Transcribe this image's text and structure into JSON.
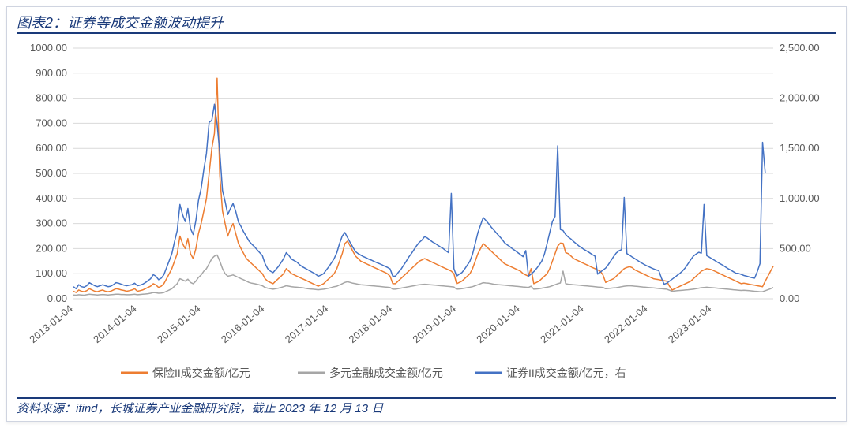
{
  "title": "图表2：证券等成交金额波动提升",
  "source": "资料来源：ifind，长城证券产业金融研究院，截止 2023 年 12 月 13 日",
  "chart": {
    "type": "line",
    "background_color": "#ffffff",
    "grid_color": "#d9d9d9",
    "text_color": "#595959",
    "title_fontsize": 18,
    "label_fontsize": 13,
    "left_axis": {
      "ymin": 0,
      "ymax": 1000,
      "step": 100,
      "decimals": 2
    },
    "right_axis": {
      "ymin": 0,
      "ymax": 2500,
      "step": 500,
      "decimals": 2
    },
    "x_labels": [
      "2013-01-04",
      "2014-01-04",
      "2015-01-04",
      "2016-01-04",
      "2017-01-04",
      "2018-01-04",
      "2019-01-04",
      "2020-01-04",
      "2021-01-04",
      "2022-01-04",
      "2023-01-04"
    ],
    "n_points": 264,
    "x_per_year": 24,
    "series": [
      {
        "name": "保险II成交金额/亿元",
        "color": "#ed7d31",
        "axis": "left",
        "line_width": 1.5,
        "values": [
          30,
          25,
          35,
          30,
          28,
          32,
          40,
          35,
          30,
          28,
          32,
          35,
          30,
          28,
          30,
          35,
          40,
          38,
          35,
          33,
          30,
          32,
          35,
          40,
          30,
          32,
          35,
          40,
          45,
          50,
          60,
          55,
          45,
          50,
          60,
          80,
          100,
          120,
          150,
          180,
          250,
          220,
          200,
          240,
          180,
          160,
          200,
          260,
          300,
          350,
          400,
          500,
          600,
          660,
          880,
          490,
          350,
          300,
          250,
          280,
          300,
          260,
          220,
          200,
          180,
          160,
          150,
          140,
          130,
          120,
          110,
          100,
          80,
          70,
          65,
          60,
          70,
          80,
          90,
          100,
          120,
          110,
          100,
          95,
          90,
          85,
          80,
          75,
          70,
          65,
          60,
          55,
          50,
          55,
          60,
          70,
          80,
          90,
          100,
          120,
          150,
          180,
          220,
          230,
          210,
          190,
          170,
          160,
          150,
          145,
          140,
          135,
          130,
          125,
          120,
          115,
          110,
          105,
          100,
          90,
          60,
          60,
          70,
          80,
          90,
          100,
          110,
          120,
          130,
          140,
          150,
          155,
          160,
          155,
          150,
          145,
          140,
          135,
          130,
          125,
          120,
          115,
          110,
          100,
          60,
          65,
          70,
          80,
          90,
          100,
          120,
          150,
          180,
          200,
          220,
          210,
          200,
          190,
          180,
          170,
          160,
          150,
          140,
          135,
          130,
          125,
          120,
          115,
          110,
          100,
          95,
          90,
          120,
          60,
          65,
          70,
          80,
          90,
          100,
          120,
          150,
          180,
          210,
          222,
          221,
          184,
          180,
          170,
          160,
          155,
          150,
          145,
          140,
          135,
          130,
          125,
          120,
          115,
          110,
          95,
          65,
          70,
          75,
          80,
          90,
          100,
          110,
          120,
          125,
          128,
          124,
          115,
          110,
          105,
          100,
          95,
          90,
          85,
          80,
          78,
          76,
          74,
          72,
          70,
          50,
          35,
          40,
          45,
          50,
          55,
          60,
          65,
          70,
          80,
          90,
          100,
          110,
          115,
          120,
          118,
          115,
          110,
          105,
          100,
          95,
          90,
          85,
          80,
          75,
          70,
          65,
          60,
          62,
          60,
          58,
          56,
          54,
          52,
          50,
          48,
          70,
          90,
          110,
          130
        ]
      },
      {
        "name": "多元金融成交金额/亿元",
        "color": "#a6a6a6",
        "axis": "left",
        "line_width": 1.5,
        "values": [
          15,
          14,
          16,
          15,
          14,
          16,
          18,
          17,
          16,
          15,
          16,
          17,
          16,
          15,
          16,
          17,
          18,
          18,
          17,
          17,
          16,
          16,
          17,
          18,
          16,
          17,
          18,
          19,
          20,
          22,
          25,
          24,
          22,
          23,
          25,
          30,
          35,
          40,
          50,
          60,
          80,
          75,
          70,
          78,
          65,
          60,
          70,
          85,
          95,
          110,
          120,
          140,
          160,
          170,
          175,
          150,
          120,
          100,
          90,
          92,
          95,
          90,
          85,
          80,
          75,
          70,
          65,
          62,
          60,
          58,
          55,
          52,
          45,
          42,
          40,
          38,
          40,
          42,
          45,
          48,
          52,
          50,
          48,
          47,
          46,
          45,
          44,
          42,
          40,
          39,
          38,
          37,
          36,
          37,
          38,
          40,
          42,
          45,
          48,
          50,
          55,
          60,
          65,
          68,
          65,
          62,
          60,
          58,
          56,
          55,
          54,
          53,
          52,
          51,
          50,
          49,
          48,
          47,
          46,
          45,
          38,
          38,
          40,
          42,
          44,
          46,
          48,
          50,
          52,
          54,
          56,
          57,
          58,
          57,
          56,
          55,
          54,
          53,
          52,
          51,
          50,
          49,
          48,
          47,
          38,
          39,
          40,
          42,
          44,
          46,
          48,
          52,
          56,
          60,
          64,
          63,
          62,
          60,
          58,
          57,
          56,
          55,
          54,
          53,
          52,
          51,
          50,
          49,
          48,
          47,
          46,
          45,
          50,
          38,
          39,
          40,
          42,
          44,
          46,
          48,
          52,
          56,
          60,
          63,
          110,
          60,
          58,
          57,
          56,
          55,
          54,
          53,
          52,
          51,
          50,
          49,
          48,
          47,
          46,
          45,
          40,
          41,
          42,
          43,
          44,
          46,
          48,
          50,
          51,
          52,
          51,
          50,
          49,
          48,
          47,
          46,
          45,
          44,
          43,
          42,
          41,
          40,
          39,
          38,
          34,
          30,
          31,
          32,
          33,
          34,
          35,
          36,
          37,
          38,
          40,
          42,
          44,
          45,
          46,
          45,
          44,
          43,
          42,
          41,
          40,
          39,
          38,
          37,
          36,
          35,
          34,
          33,
          34,
          33,
          32,
          31,
          30,
          29,
          28,
          28,
          32,
          36,
          40,
          45
        ]
      },
      {
        "name": "证券II成交金额/亿元，右",
        "color": "#4472c4",
        "axis": "right",
        "line_width": 1.5,
        "values": [
          120,
          100,
          140,
          120,
          115,
          130,
          160,
          145,
          130,
          120,
          130,
          140,
          130,
          120,
          125,
          140,
          160,
          155,
          145,
          135,
          130,
          135,
          140,
          155,
          130,
          135,
          145,
          160,
          180,
          200,
          240,
          225,
          190,
          205,
          240,
          310,
          380,
          450,
          570,
          680,
          940,
          840,
          770,
          900,
          700,
          640,
          780,
          980,
          1100,
          1290,
          1450,
          1760,
          1780,
          1940,
          1740,
          1460,
          1080,
          970,
          840,
          900,
          950,
          870,
          765,
          720,
          665,
          620,
          575,
          545,
          520,
          490,
          460,
          430,
          350,
          300,
          275,
          260,
          290,
          320,
          360,
          400,
          460,
          430,
          395,
          380,
          365,
          340,
          320,
          305,
          290,
          275,
          260,
          245,
          225,
          235,
          250,
          285,
          320,
          360,
          400,
          460,
          550,
          625,
          660,
          610,
          560,
          515,
          470,
          450,
          435,
          420,
          408,
          395,
          385,
          372,
          360,
          350,
          338,
          325,
          313,
          298,
          225,
          225,
          260,
          290,
          330,
          370,
          415,
          450,
          490,
          530,
          563,
          585,
          620,
          605,
          585,
          565,
          550,
          532,
          515,
          500,
          478,
          460,
          1050,
          300,
          225,
          245,
          260,
          295,
          335,
          375,
          445,
          550,
          660,
          735,
          810,
          780,
          750,
          715,
          685,
          655,
          625,
          595,
          560,
          538,
          520,
          498,
          480,
          460,
          440,
          420,
          480,
          225,
          245,
          270,
          300,
          335,
          375,
          445,
          550,
          660,
          770,
          820,
          1525,
          690,
          680,
          640,
          615,
          595,
          570,
          548,
          525,
          508,
          490,
          475,
          458,
          440,
          425,
          245,
          265,
          285,
          305,
          340,
          380,
          420,
          455,
          478,
          490,
          1010,
          450,
          435,
          415,
          400,
          382,
          365,
          350,
          335,
          322,
          310,
          298,
          288,
          280,
          205,
          145,
          155,
          175,
          195,
          215,
          235,
          255,
          280,
          310,
          350,
          390,
          425,
          445,
          463,
          455,
          940,
          430,
          415,
          398,
          382,
          365,
          350,
          335,
          318,
          300,
          286,
          270,
          255,
          252,
          242,
          232,
          225,
          217,
          210,
          205,
          270,
          350,
          1560,
          1250
        ]
      }
    ],
    "legend": {
      "position": "bottom",
      "items": [
        {
          "label": "保险II成交金额/亿元",
          "color": "#ed7d31"
        },
        {
          "label": "多元金融成交金额/亿元",
          "color": "#a6a6a6"
        },
        {
          "label": "证券II成交金额/亿元，右",
          "color": "#4472c4"
        }
      ]
    }
  }
}
